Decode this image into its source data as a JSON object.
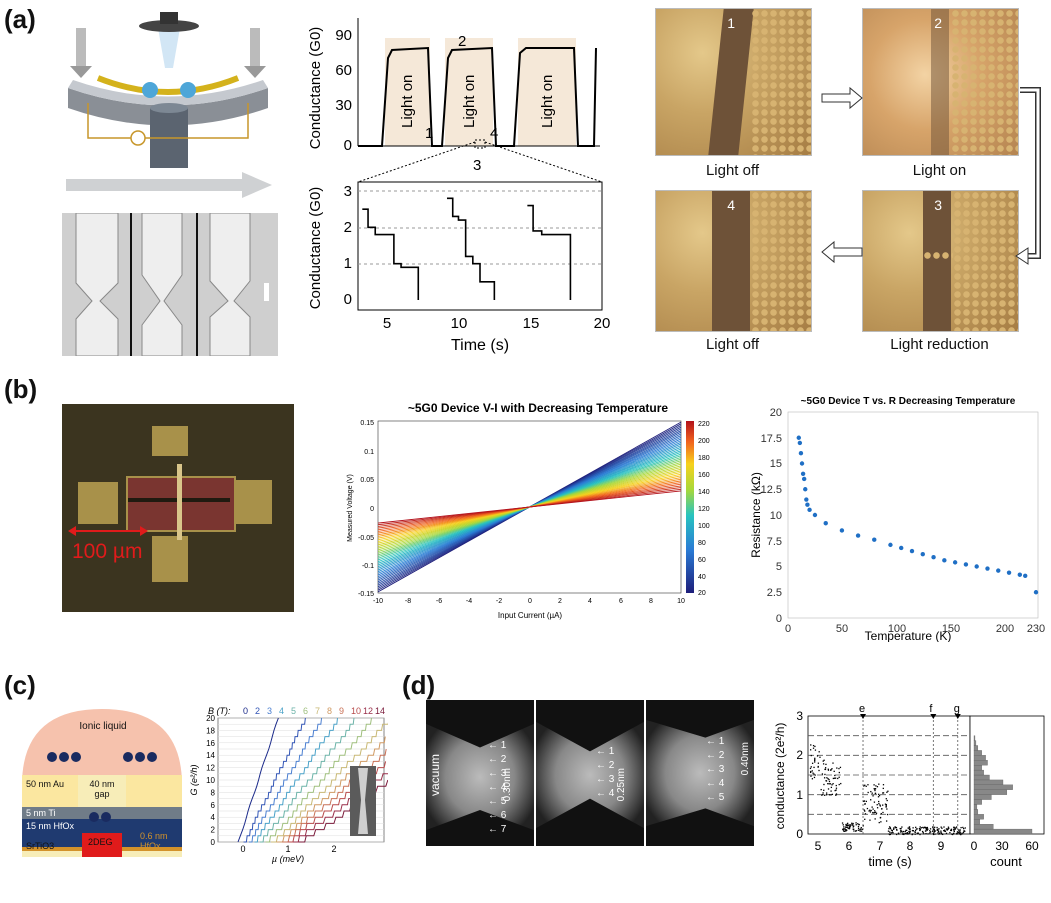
{
  "panels": {
    "a": "(a)",
    "b": "(b)",
    "c": "(c)",
    "d": "(d)"
  },
  "a": {
    "top_plot": {
      "ylabel": "Conductance (G0)",
      "yticks": [
        "0",
        "30",
        "60",
        "90"
      ],
      "light_on": "Light on",
      "markers": [
        "1",
        "2",
        "3",
        "4"
      ]
    },
    "bottom_plot": {
      "ylabel": "Conductance (G0)",
      "xlabel": "Time (s)",
      "yticks": [
        "0",
        "1",
        "2",
        "3"
      ],
      "xticks": [
        "5",
        "10",
        "15",
        "20"
      ]
    },
    "renders": [
      {
        "num": "1",
        "caption": "Light off"
      },
      {
        "num": "2",
        "caption": "Light on"
      },
      {
        "num": "4",
        "caption": "Light off"
      },
      {
        "num": "3",
        "caption": "Light reduction"
      }
    ]
  },
  "b": {
    "scale_label": "100 µm",
    "vi_title": "~5G0 Device V-I with Decreasing Temperature",
    "vi_xlabel": "Input Current (µA)",
    "vi_ylabel": "Measured Voltage (V)",
    "vi_xticks": [
      "-10",
      "-8",
      "-6",
      "-4",
      "-2",
      "0",
      "2",
      "4",
      "6",
      "8",
      "10"
    ],
    "vi_yticks": [
      "0.15",
      "0.1",
      "0.05",
      "0",
      "-0.05",
      "-0.1",
      "-0.15"
    ],
    "cbar_ticks": [
      "220",
      "200",
      "180",
      "160",
      "140",
      "120",
      "100",
      "80",
      "60",
      "40",
      "20"
    ],
    "rt_title": "~5G0 Device T vs. R Decreasing Temperature",
    "rt_xlabel": "Temperature (K)",
    "rt_ylabel": "Resistance (kΩ)",
    "rt_xticks": [
      "0",
      "50",
      "100",
      "150",
      "200",
      "230"
    ],
    "rt_yticks": [
      "0",
      "2.5",
      "5",
      "7.5",
      "10",
      "12.5",
      "15",
      "17.5",
      "20"
    ]
  },
  "c": {
    "labels": {
      "ionic": "Ionic liquid",
      "au": "50 nm Au",
      "gap": "40 nm gap",
      "ti": "5 nm Ti",
      "hfo": "15 nm HfOx",
      "twodeg": "2DEG",
      "sto": "SrTiO3",
      "hfo2": "0.6 nm HfOx"
    },
    "b_label": "B (T):",
    "b_values": [
      "0",
      "2",
      "3",
      "4",
      "5",
      "6",
      "7",
      "8",
      "9",
      "10",
      "12",
      "14"
    ],
    "ylabel": "G (e²/h)",
    "xlabel": "µ (meV)",
    "yticks": [
      "0",
      "2",
      "4",
      "6",
      "8",
      "10",
      "12",
      "14",
      "16",
      "18",
      "20"
    ],
    "xticks": [
      "0",
      "1",
      "2"
    ]
  },
  "d": {
    "vacuum": "vacuum",
    "img1": {
      "layers": [
        "1",
        "2",
        "3",
        "4",
        "5",
        "6",
        "7"
      ],
      "gap": "0.30nm"
    },
    "img2": {
      "layers": [
        "1",
        "2",
        "3",
        "4"
      ],
      "gap": "0.25nm"
    },
    "img3": {
      "layers": [
        "1",
        "2",
        "3",
        "4",
        "5"
      ],
      "gap": "0.40nm"
    },
    "ylabel": "conductance (2e²/h)",
    "xlabel": "time (s)",
    "yticks": [
      "0",
      "1",
      "2",
      "3"
    ],
    "xticks": [
      "5",
      "6",
      "7",
      "8",
      "9"
    ],
    "markers": [
      "e",
      "f",
      "g"
    ],
    "count_label": "count",
    "count_ticks": [
      "0",
      "30",
      "60"
    ]
  },
  "chart_data": [
    {
      "type": "line",
      "id": "a-top",
      "ylabel": "Conductance (G0)",
      "ylim": [
        0,
        90
      ],
      "annotations": [
        "Light on",
        "Light on",
        "Light on",
        "1",
        "2",
        "3",
        "4"
      ]
    },
    {
      "type": "line",
      "id": "a-bottom",
      "xlabel": "Time (s)",
      "ylabel": "Conductance (G0)",
      "xlim": [
        4,
        21
      ],
      "ylim": [
        0,
        3
      ],
      "series": [
        {
          "x": [
            4.3,
            4.7,
            5.2,
            6,
            6.5,
            7,
            7.5,
            8.2
          ],
          "y": [
            2.5,
            2.0,
            1.8,
            1.8,
            1.0,
            0.9,
            0.9,
            0
          ]
        },
        {
          "x": [
            10.2,
            10.6,
            11,
            11.5,
            12,
            12.5,
            13.5
          ],
          "y": [
            2.8,
            2.3,
            2.2,
            1.2,
            1.0,
            0.5,
            0
          ]
        },
        {
          "x": [
            15.8,
            16.2,
            16.8,
            17.5,
            18.8
          ],
          "y": [
            2.6,
            1.9,
            1.8,
            1.8,
            0
          ]
        }
      ]
    },
    {
      "type": "line",
      "id": "b-vi",
      "title": "~5G0 Device V-I with Decreasing Temperature",
      "xlabel": "Input Current (µA)",
      "ylabel": "Measured Voltage (V)",
      "xlim": [
        -10,
        10
      ],
      "ylim": [
        -0.15,
        0.15
      ],
      "colorbar": {
        "min": 20,
        "max": 220
      },
      "slope_range_V_per_uA": [
        0.0028,
        0.0148
      ]
    },
    {
      "type": "scatter",
      "id": "b-rt",
      "title": "~5G0 Device T vs. R Decreasing Temperature",
      "xlabel": "Temperature (K)",
      "ylabel": "Resistance (kΩ)",
      "xlim": [
        0,
        230
      ],
      "ylim": [
        0,
        20
      ],
      "x": [
        10,
        11,
        12,
        13,
        14,
        15,
        16,
        17,
        18,
        20,
        25,
        35,
        50,
        65,
        80,
        95,
        105,
        115,
        125,
        135,
        145,
        155,
        165,
        175,
        185,
        195,
        205,
        215,
        220,
        230
      ],
      "y": [
        17.5,
        17,
        16,
        15,
        14,
        13.5,
        12.5,
        11.5,
        11,
        10.5,
        10,
        9.2,
        8.5,
        8.0,
        7.6,
        7.1,
        6.8,
        6.5,
        6.2,
        5.9,
        5.6,
        5.4,
        5.2,
        5.0,
        4.8,
        4.6,
        4.4,
        4.2,
        4.1,
        2.5
      ]
    },
    {
      "type": "line",
      "id": "c-plateaus",
      "xlabel": "µ (meV)",
      "ylabel": "G (e²/h)",
      "ylim": [
        0,
        20
      ],
      "xlim": [
        -0.4,
        2.5
      ],
      "series_names": [
        "0",
        "2",
        "3",
        "4",
        "5",
        "6",
        "7",
        "8",
        "9",
        "10",
        "12",
        "14"
      ]
    },
    {
      "type": "scatter",
      "id": "d-cond",
      "xlabel": "time (s)",
      "ylabel": "conductance (2e²/h)",
      "xlim": [
        4.7,
        10
      ],
      "ylim": [
        0,
        3
      ],
      "markers": [
        "e",
        "f",
        "g"
      ]
    }
  ]
}
